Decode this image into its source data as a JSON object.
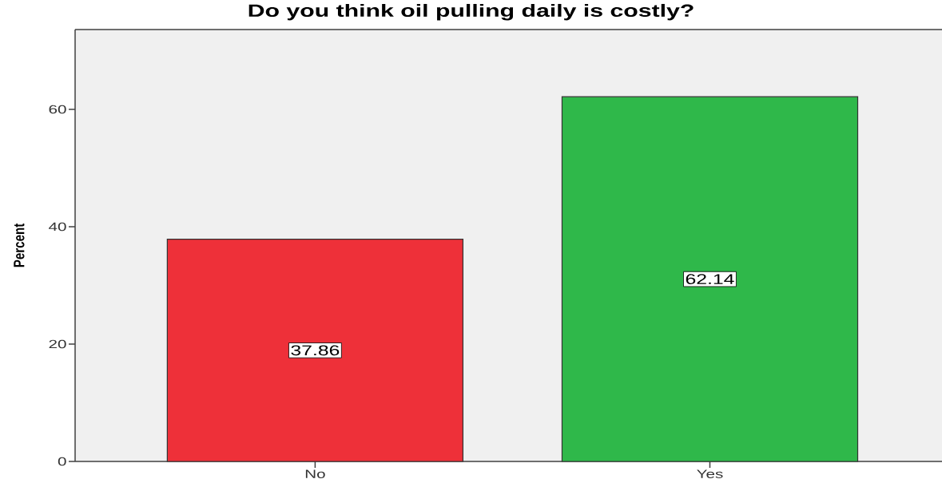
{
  "chart_data": {
    "type": "bar",
    "title": "Do you think oil pulling daily is costly?",
    "ylabel": "Percent",
    "categories": [
      "No",
      "Yes"
    ],
    "values": [
      37.86,
      62.14
    ],
    "colors": [
      "#ee3039",
      "#2fb84a"
    ],
    "ylim": [
      0,
      73.6
    ],
    "yticks": [
      0,
      20,
      40,
      60
    ],
    "data_labels": true
  }
}
